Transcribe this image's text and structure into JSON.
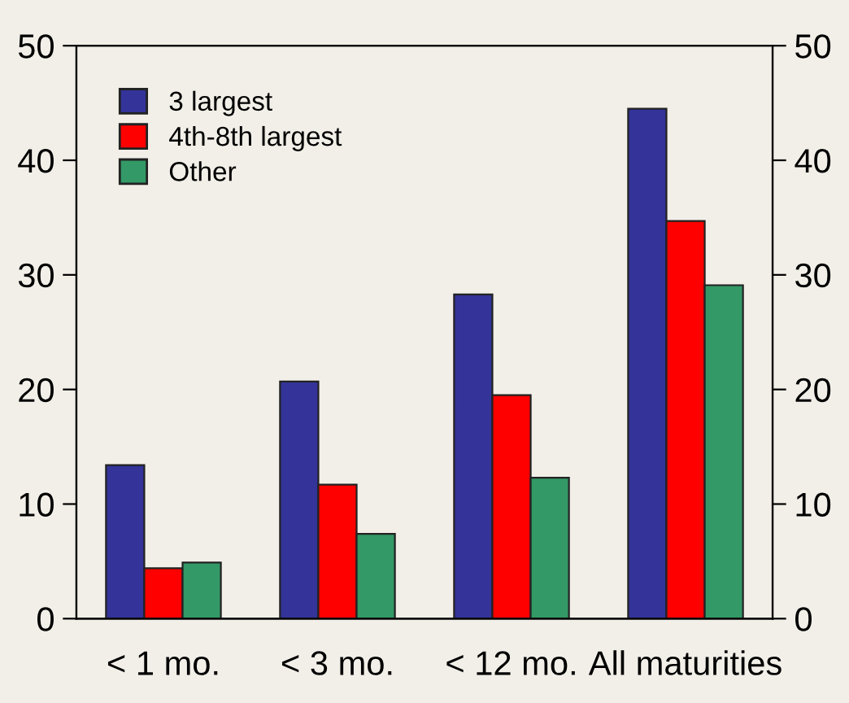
{
  "chart_data": {
    "type": "bar",
    "categories": [
      "< 1 mo.",
      "< 3 mo.",
      "< 12 mo.",
      "All maturities"
    ],
    "series": [
      {
        "name": "3 largest",
        "color": "#333399",
        "values": [
          13.4,
          20.7,
          28.3,
          44.5
        ]
      },
      {
        "name": "4th-8th largest",
        "color": "#ff0000",
        "values": [
          4.4,
          11.7,
          19.5,
          34.7
        ]
      },
      {
        "name": "Other",
        "color": "#339966",
        "values": [
          4.9,
          7.4,
          12.3,
          29.1
        ]
      }
    ],
    "ylim": [
      0,
      50
    ],
    "yticks": [
      0,
      10,
      20,
      30,
      40,
      50
    ],
    "y2lim": [
      0,
      50
    ],
    "y2ticks": [
      0,
      10,
      20,
      30,
      40,
      50
    ],
    "grid": false,
    "legend": "top left"
  }
}
